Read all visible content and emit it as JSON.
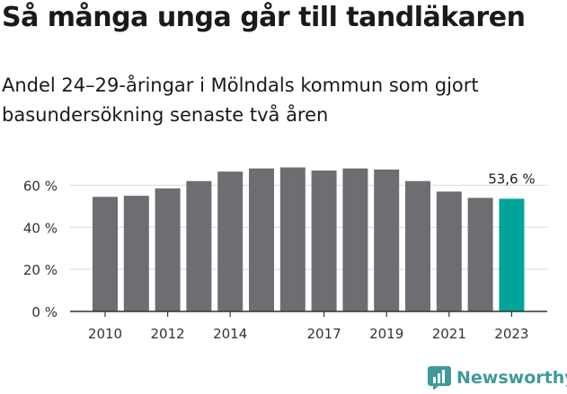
{
  "header": {
    "title": "Så många unga går till tandläkaren",
    "subtitle": "Andel 24–29-åringar i Mölndals kommun som gjort basundersökning senaste två åren"
  },
  "chart_data": {
    "type": "bar",
    "categories": [
      "2010",
      "2011",
      "2012",
      "2013",
      "2014",
      "2015",
      "2016",
      "2017",
      "2018",
      "2019",
      "2020",
      "2021",
      "2022",
      "2023"
    ],
    "values": [
      54.5,
      55,
      58.5,
      62,
      66.5,
      68,
      68.5,
      67,
      68,
      67.5,
      62,
      57,
      54,
      53.6
    ],
    "x_tick_labels": [
      "2010",
      "2012",
      "2014",
      "2017",
      "2019",
      "2021",
      "2023"
    ],
    "y_ticks": [
      0,
      20,
      40,
      60
    ],
    "y_tick_labels": [
      "0 %",
      "20 %",
      "40 %",
      "60 %"
    ],
    "ylim": [
      0,
      70
    ],
    "grid": true,
    "highlight": {
      "category": "2023",
      "label": "53,6 %"
    },
    "colors": {
      "bar": "#6e6d72",
      "highlight": "#00a499",
      "grid": "#d9d9d9",
      "axis": "#333333"
    }
  },
  "brand": {
    "name": "Newsworthy",
    "logo_icon": "bar-chart-logo-icon",
    "color": "#3e9b99"
  }
}
